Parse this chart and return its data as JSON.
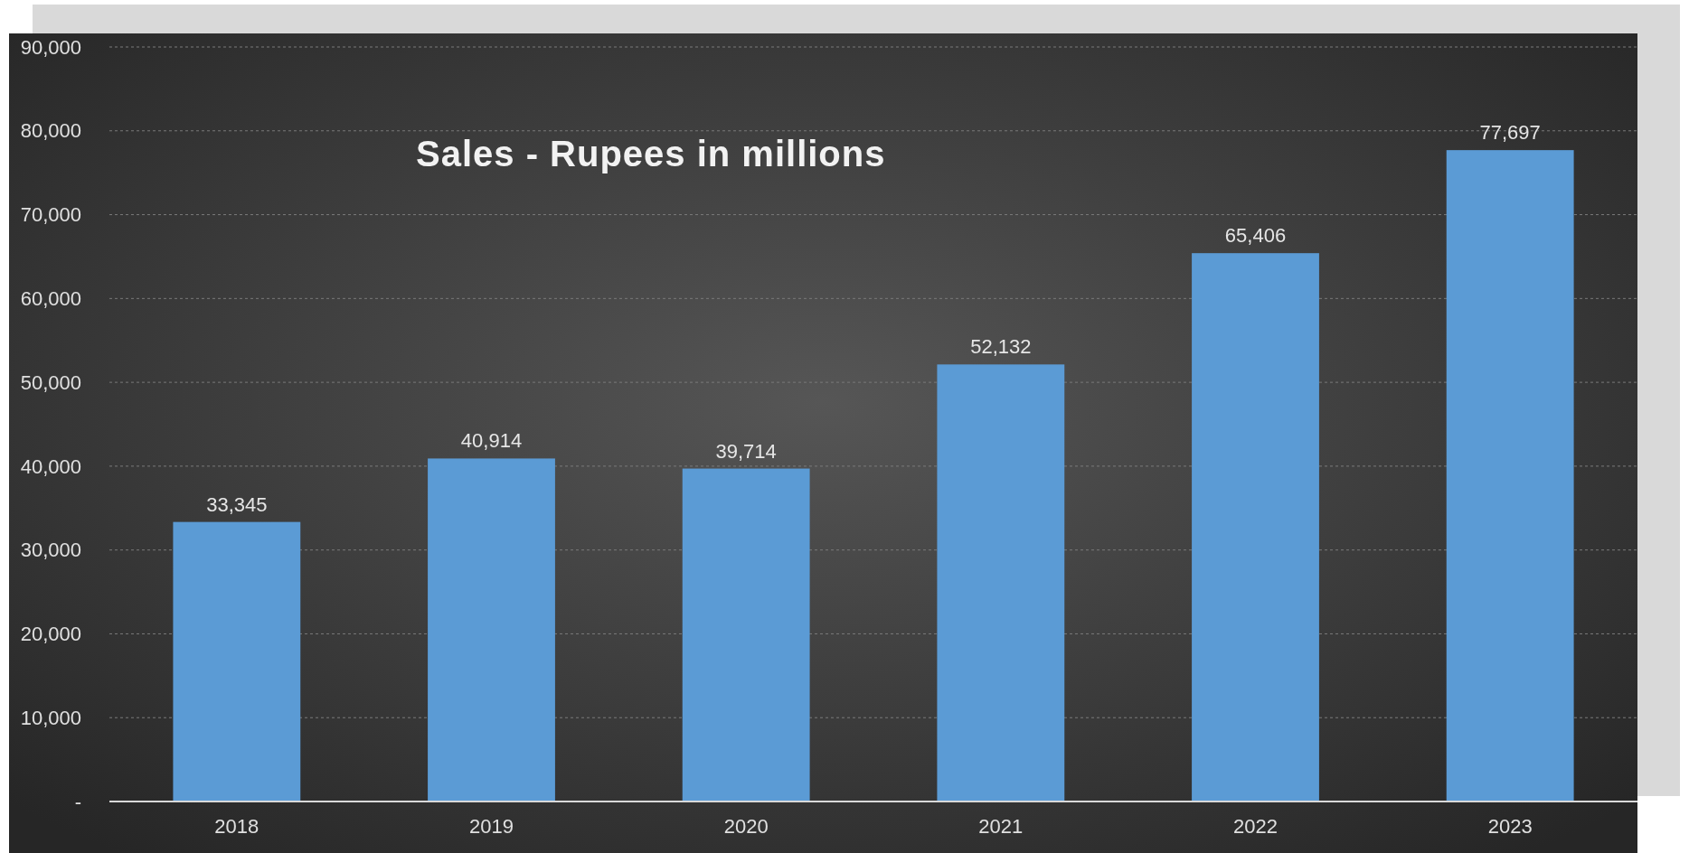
{
  "chart_data": {
    "type": "bar",
    "title": "Sales - Rupees in millions",
    "categories": [
      "2018",
      "2019",
      "2020",
      "2021",
      "2022",
      "2023"
    ],
    "values": [
      33345,
      40914,
      39714,
      52132,
      65406,
      77697
    ],
    "color": "#5b9bd5",
    "ylim": [
      0,
      90000
    ],
    "yticks": [
      {
        "value": 0,
        "label": "-"
      },
      {
        "value": 10000,
        "label": "10,000"
      },
      {
        "value": 20000,
        "label": "20,000"
      },
      {
        "value": 30000,
        "label": "30,000"
      },
      {
        "value": 40000,
        "label": "40,000"
      },
      {
        "value": 50000,
        "label": "50,000"
      },
      {
        "value": 60000,
        "label": "60,000"
      },
      {
        "value": 70000,
        "label": "70,000"
      },
      {
        "value": 80000,
        "label": "80,000"
      },
      {
        "value": 90000,
        "label": "90,000"
      }
    ],
    "grid": "y",
    "value_labels": [
      "33,345",
      "40,914",
      "39,714",
      "52,132",
      "65,406",
      "77,697"
    ]
  }
}
